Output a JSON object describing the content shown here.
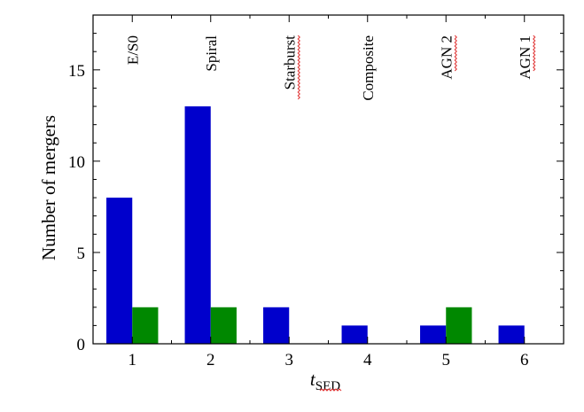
{
  "chart_data": {
    "type": "bar",
    "x": [
      1,
      2,
      3,
      4,
      5,
      6
    ],
    "categories": [
      "1",
      "2",
      "3",
      "4",
      "5",
      "6"
    ],
    "category_labels": [
      "E/S0",
      "Spiral",
      "Starburst",
      "Composite",
      "AGN 2",
      "AGN 1"
    ],
    "series": [
      {
        "color": "#0000cc",
        "values": [
          8,
          13,
          2,
          1,
          1,
          1
        ]
      },
      {
        "color": "#008800",
        "values": [
          2,
          2,
          0,
          0,
          2,
          0
        ]
      }
    ],
    "xlabel_main": "t",
    "xlabel_sub": "SED",
    "ylabel": "Number of mergers",
    "xlim": [
      0.5,
      6.5
    ],
    "ylim": [
      0,
      18
    ],
    "yticks": [
      0,
      5,
      10,
      15
    ],
    "grid": false,
    "bar_width": 0.33
  }
}
